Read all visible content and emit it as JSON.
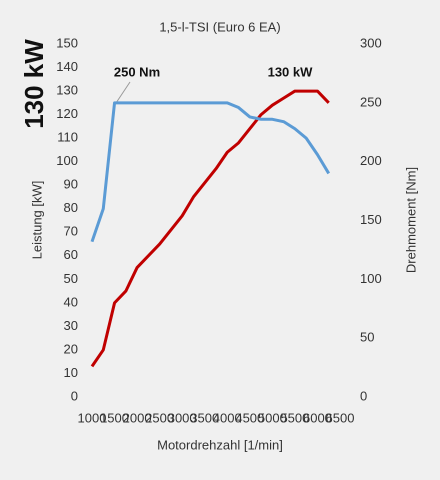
{
  "chart_data": {
    "type": "line",
    "title": "1,5-l-TSI (Euro 6 EA)",
    "badge": "130 kW",
    "xlabel": "Motordrehzahl [1/min]",
    "ylabel": "Leistung [kW]",
    "y2label": "Drehmoment [Nm]",
    "annotations": [
      "250 Nm",
      "130 kW"
    ],
    "x": [
      1000,
      1250,
      1500,
      1750,
      2000,
      2500,
      3000,
      3250,
      3750,
      4000,
      4250,
      4500,
      4750,
      5000,
      5250,
      5500,
      5750,
      6000,
      6250
    ],
    "series": [
      {
        "color": "#c00000",
        "values": [
          13,
          20,
          40,
          45,
          55,
          65,
          77,
          85,
          97,
          104,
          108,
          114,
          120,
          124,
          127,
          130,
          130,
          130,
          125
        ]
      },
      {
        "color": "#5b9bd5",
        "axis": "y2",
        "values": [
          132,
          160,
          250,
          250,
          250,
          250,
          250,
          250,
          250,
          250,
          246,
          238,
          236,
          236,
          234,
          228,
          220,
          206,
          190
        ]
      }
    ],
    "xlim": [
      1000,
      6500
    ],
    "xticks": [
      1000,
      1500,
      2000,
      2500,
      3000,
      3500,
      4000,
      4500,
      5000,
      5500,
      6000,
      6500
    ],
    "ylim": [
      0,
      150
    ],
    "yticks": [
      0,
      10,
      20,
      30,
      40,
      50,
      60,
      70,
      80,
      90,
      100,
      110,
      120,
      130,
      140,
      150
    ],
    "y2lim": [
      0,
      300
    ],
    "y2ticks": [
      0,
      50,
      100,
      150,
      200,
      250,
      300
    ]
  }
}
